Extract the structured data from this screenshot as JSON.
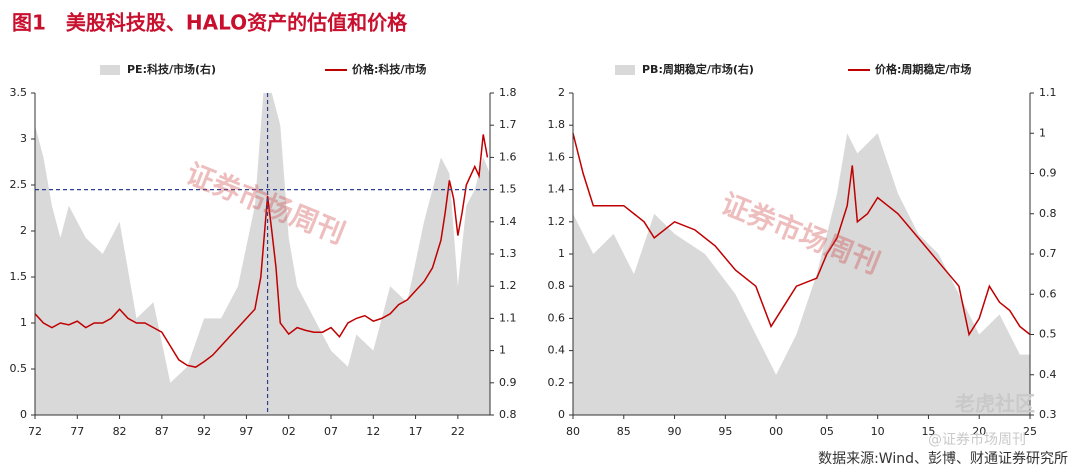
{
  "header": {
    "title": "图1　美股科技股、HALO资产的估值和价格"
  },
  "chart_data": [
    {
      "type": "combo",
      "xlim": [
        1972,
        2025.8
      ],
      "xticks": [
        {
          "value": 1972,
          "label": "72"
        },
        {
          "value": 1977,
          "label": "77"
        },
        {
          "value": 1982,
          "label": "82"
        },
        {
          "value": 1987,
          "label": "87"
        },
        {
          "value": 1992,
          "label": "92"
        },
        {
          "value": 1997,
          "label": "97"
        },
        {
          "value": 2002,
          "label": "02"
        },
        {
          "value": 2007,
          "label": "07"
        },
        {
          "value": 2012,
          "label": "12"
        },
        {
          "value": 2017,
          "label": "17"
        },
        {
          "value": 2022,
          "label": "22"
        }
      ],
      "ylim": [
        0,
        3.5
      ],
      "yticks": [
        0,
        0.5,
        1,
        1.5,
        2,
        2.5,
        3,
        3.5
      ],
      "y2lim": [
        0.8,
        1.8
      ],
      "y2ticks": [
        0.8,
        0.9,
        1,
        1.1,
        1.2,
        1.3,
        1.4,
        1.5,
        1.6,
        1.7,
        1.8
      ],
      "reference_lines": [
        {
          "axis": "x",
          "value": 1999.5
        },
        {
          "axis": "y",
          "value": 2.45
        }
      ],
      "series": [
        {
          "name": "PE:科技/市场(右)",
          "type": "area",
          "axis": "y2",
          "color": "#d9d9d9",
          "x": [
            1972,
            1973,
            1974,
            1975,
            1976,
            1978,
            1980,
            1982,
            1984,
            1986,
            1988,
            1990,
            1992,
            1994,
            1996,
            1998,
            1999,
            2000,
            2001,
            2002,
            2003,
            2005,
            2007,
            2009,
            2010,
            2012,
            2014,
            2016,
            2018,
            2020,
            2021,
            2022,
            2023,
            2024,
            2025,
            2025.8
          ],
          "values": [
            1.7,
            1.6,
            1.45,
            1.35,
            1.45,
            1.35,
            1.3,
            1.4,
            1.1,
            1.15,
            0.9,
            0.95,
            1.1,
            1.1,
            1.2,
            1.45,
            1.8,
            1.8,
            1.7,
            1.35,
            1.2,
            1.1,
            1.0,
            0.95,
            1.05,
            1.0,
            1.2,
            1.15,
            1.4,
            1.6,
            1.55,
            1.2,
            1.45,
            1.5,
            1.6,
            1.55
          ]
        },
        {
          "name": "价格:科技/市场",
          "type": "line",
          "axis": "y",
          "color": "#c00000",
          "x": [
            1972,
            1973,
            1974,
            1975,
            1976,
            1977,
            1978,
            1979,
            1980,
            1981,
            1982,
            1983,
            1984,
            1985,
            1986,
            1987,
            1988,
            1989,
            1990,
            1991,
            1992,
            1993,
            1994,
            1995,
            1996,
            1997,
            1998,
            1998.7,
            1999.5,
            2000,
            2000.5,
            2001,
            2002,
            2003,
            2004,
            2005,
            2006,
            2007,
            2008,
            2009,
            2010,
            2011,
            2012,
            2013,
            2014,
            2015,
            2016,
            2017,
            2018,
            2019,
            2020,
            2020.5,
            2021,
            2021.5,
            2022,
            2022.5,
            2023,
            2024,
            2024.5,
            2025,
            2025.5
          ],
          "values": [
            1.1,
            1.0,
            0.95,
            1.0,
            0.98,
            1.02,
            0.95,
            1.0,
            1.0,
            1.05,
            1.15,
            1.05,
            1.0,
            1.0,
            0.95,
            0.9,
            0.75,
            0.6,
            0.54,
            0.52,
            0.58,
            0.65,
            0.75,
            0.85,
            0.95,
            1.05,
            1.15,
            1.5,
            2.38,
            2.0,
            1.6,
            1.0,
            0.88,
            0.95,
            0.92,
            0.9,
            0.9,
            0.95,
            0.85,
            1.0,
            1.05,
            1.08,
            1.02,
            1.05,
            1.1,
            1.2,
            1.25,
            1.35,
            1.45,
            1.6,
            1.9,
            2.2,
            2.55,
            2.35,
            1.95,
            2.2,
            2.5,
            2.7,
            2.6,
            3.05,
            2.8
          ]
        }
      ]
    },
    {
      "type": "combo",
      "xlim": [
        1980,
        2025
      ],
      "xticks": [
        {
          "value": 1980,
          "label": "80"
        },
        {
          "value": 1985,
          "label": "85"
        },
        {
          "value": 1990,
          "label": "90"
        },
        {
          "value": 1995,
          "label": "95"
        },
        {
          "value": 2000,
          "label": "00"
        },
        {
          "value": 2005,
          "label": "05"
        },
        {
          "value": 2010,
          "label": "10"
        },
        {
          "value": 2015,
          "label": "15"
        },
        {
          "value": 2020,
          "label": "20"
        },
        {
          "value": 2025,
          "label": "25"
        }
      ],
      "ylim": [
        0,
        2
      ],
      "yticks": [
        0,
        0.2,
        0.4,
        0.6,
        0.8,
        1,
        1.2,
        1.4,
        1.6,
        1.8,
        2
      ],
      "y2lim": [
        0.3,
        1.1
      ],
      "y2ticks": [
        0.3,
        0.4,
        0.5,
        0.6,
        0.7,
        0.8,
        0.9,
        1,
        1.1
      ],
      "series": [
        {
          "name": "PB:周期稳定/市场(右)",
          "type": "area",
          "axis": "y2",
          "color": "#d9d9d9",
          "x": [
            1980,
            1982,
            1984,
            1986,
            1988,
            1990,
            1993,
            1996,
            1998,
            2000,
            2002,
            2004,
            2006,
            2007,
            2008,
            2010,
            2012,
            2014,
            2016,
            2018,
            2020,
            2022,
            2024,
            2025
          ],
          "values": [
            0.8,
            0.7,
            0.75,
            0.65,
            0.8,
            0.75,
            0.7,
            0.6,
            0.5,
            0.4,
            0.5,
            0.65,
            0.85,
            1.0,
            0.95,
            1.0,
            0.85,
            0.75,
            0.7,
            0.6,
            0.5,
            0.55,
            0.45,
            0.45
          ]
        },
        {
          "name": "价格:周期稳定/市场",
          "type": "line",
          "axis": "y",
          "color": "#c00000",
          "x": [
            1980,
            1981,
            1982,
            1983,
            1985,
            1987,
            1988,
            1990,
            1992,
            1994,
            1996,
            1998,
            1999.5,
            2001,
            2002,
            2004,
            2005,
            2006,
            2007,
            2007.5,
            2008,
            2009,
            2010,
            2012,
            2014,
            2016,
            2018,
            2019,
            2020,
            2021,
            2022,
            2023,
            2024,
            2025
          ],
          "values": [
            1.75,
            1.5,
            1.3,
            1.3,
            1.3,
            1.2,
            1.1,
            1.2,
            1.15,
            1.05,
            0.9,
            0.8,
            0.55,
            0.7,
            0.8,
            0.85,
            1.0,
            1.1,
            1.3,
            1.55,
            1.2,
            1.25,
            1.35,
            1.25,
            1.1,
            0.95,
            0.8,
            0.5,
            0.6,
            0.8,
            0.7,
            0.65,
            0.55,
            0.5
          ]
        }
      ]
    }
  ],
  "watermarks": [
    "证券市场周刊",
    "证券市场周刊"
  ],
  "footer": {
    "logo": "老虎社区",
    "handle": "@证券市场周刊",
    "source": "数据来源:Wind、彭博、财通证券研究所"
  }
}
